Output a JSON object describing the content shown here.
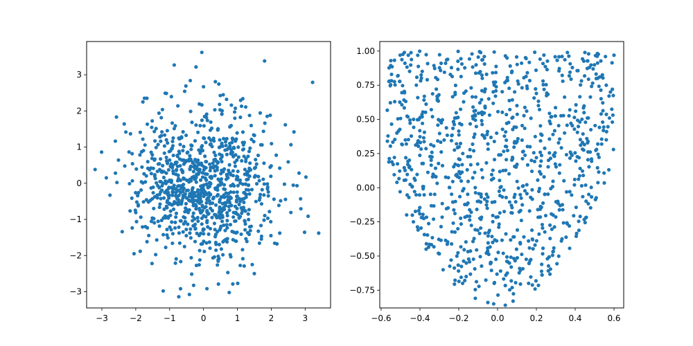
{
  "chart_data": [
    {
      "type": "scatter",
      "title": "",
      "xlabel": "",
      "ylabel": "",
      "xlim": [
        -3.45,
        3.75
      ],
      "ylim": [
        -3.45,
        3.92
      ],
      "xticks": [
        -3,
        -2,
        -1,
        0,
        1,
        2,
        3
      ],
      "yticks": [
        -3,
        -2,
        -1,
        0,
        1,
        2,
        3
      ],
      "tick_labels_x": [
        "−3",
        "−2",
        "−1",
        "0",
        "1",
        "2",
        "3"
      ],
      "tick_labels_y": [
        "−3",
        "−2",
        "−1",
        "0",
        "1",
        "2",
        "3"
      ],
      "grid": false,
      "marker_color": "#1f77b4",
      "distribution": "bivariate normal, mean 0, sd 1, ~1000 points",
      "points": [
        [
          -0.05,
          3.62
        ],
        [
          3.22,
          2.79
        ],
        [
          0.35,
          2.81
        ],
        [
          -1.13,
          2.49
        ],
        [
          -0.52,
          2.69
        ],
        [
          0.0,
          2.67
        ],
        [
          -1.79,
          2.25
        ],
        [
          0.68,
          2.32
        ],
        [
          -3.2,
          0.38
        ],
        [
          -2.76,
          -0.33
        ],
        [
          3.4,
          -1.38
        ],
        [
          2.82,
          0.28
        ],
        [
          2.67,
          1.42
        ],
        [
          1.97,
          1.88
        ],
        [
          -2.34,
          1.64
        ],
        [
          -1.19,
          -2.98
        ],
        [
          -0.73,
          -3.14
        ],
        [
          0.44,
          -2.79
        ],
        [
          1.01,
          -2.77
        ],
        [
          -2.51,
          0.64
        ],
        [
          -2.4,
          -1.34
        ],
        [
          -2.05,
          -1.95
        ],
        [
          1.99,
          -1.45
        ],
        [
          2.25,
          -1.38
        ],
        [
          1.2,
          -2.29
        ],
        [
          1.5,
          -2.5
        ],
        [
          -1.52,
          -2.22
        ],
        [
          2.5,
          0.59
        ]
      ]
    },
    {
      "type": "scatter",
      "title": "",
      "xlabel": "",
      "ylabel": "",
      "xlim": [
        -0.607,
        0.65
      ],
      "ylim": [
        -0.88,
        1.07
      ],
      "xticks": [
        -0.6,
        -0.4,
        -0.2,
        0.0,
        0.2,
        0.4,
        0.6
      ],
      "yticks": [
        -0.75,
        -0.5,
        -0.25,
        0.0,
        0.25,
        0.5,
        0.75,
        1.0
      ],
      "tick_labels_x": [
        "−0.6",
        "−0.4",
        "−0.2",
        "0.0",
        "0.2",
        "0.4",
        "0.6"
      ],
      "tick_labels_y": [
        "−0.75",
        "−0.50",
        "−0.25",
        "0.00",
        "0.25",
        "0.50",
        "0.75",
        "1.00"
      ],
      "grid": false,
      "marker_color": "#1f77b4",
      "distribution": "uniform points inside parabola y > 2.9x² − 0.85 for y < 1, ~1000 points",
      "points": [
        [
          -0.48,
          0.99
        ],
        [
          0.6,
          0.97
        ],
        [
          0.45,
          0.99
        ],
        [
          -0.55,
          0.93
        ],
        [
          -0.46,
          0.97
        ],
        [
          0.36,
          0.99
        ],
        [
          -0.53,
          0.63
        ],
        [
          -0.02,
          -0.85
        ],
        [
          0.04,
          -0.86
        ],
        [
          -0.47,
          0.32
        ],
        [
          0.42,
          0.22
        ],
        [
          0.51,
          0.28
        ],
        [
          -0.33,
          -0.23
        ],
        [
          0.37,
          -0.28
        ],
        [
          -0.18,
          -0.7
        ],
        [
          0.16,
          -0.7
        ],
        [
          -0.05,
          -0.84
        ],
        [
          0.08,
          -0.83
        ]
      ]
    }
  ]
}
